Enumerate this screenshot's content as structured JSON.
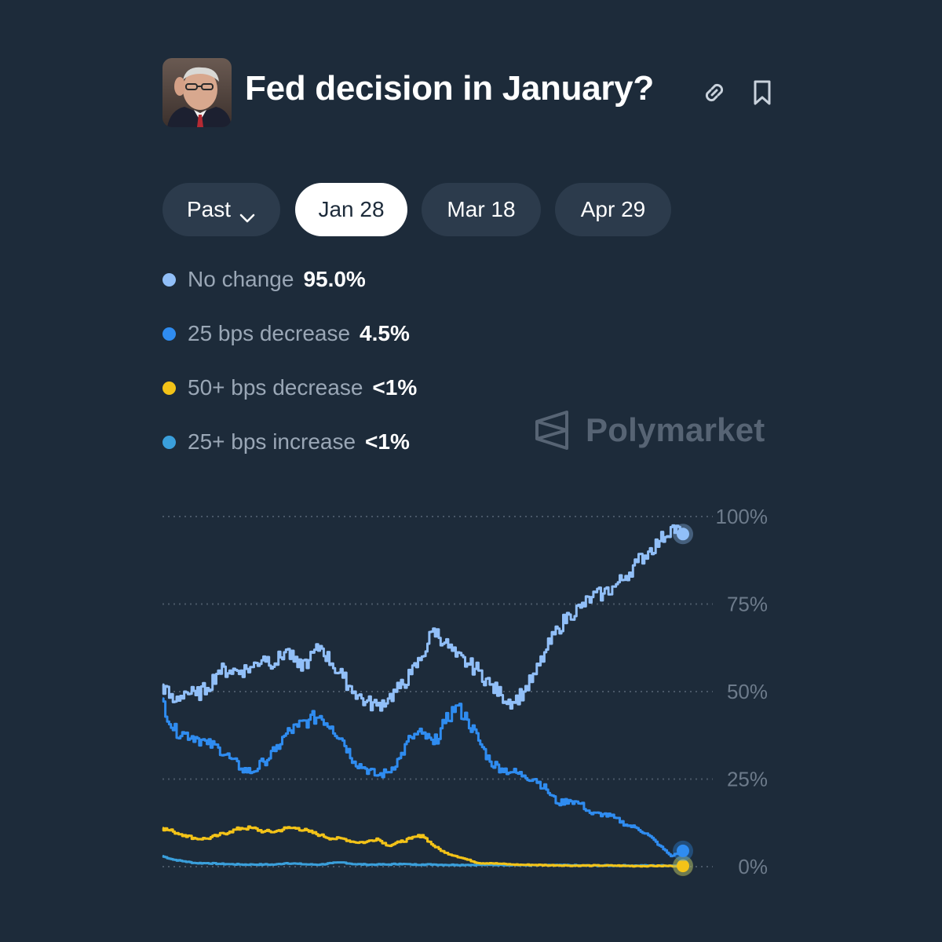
{
  "header": {
    "title": "Fed decision in January?",
    "avatar_icon": "person-portrait",
    "link_icon": "link-icon",
    "bookmark_icon": "bookmark-icon"
  },
  "tabs": [
    {
      "label": "Past",
      "has_dropdown": true,
      "active": false
    },
    {
      "label": "Jan 28",
      "active": true
    },
    {
      "label": "Mar 18",
      "active": false
    },
    {
      "label": "Apr 29",
      "active": false
    }
  ],
  "watermark": {
    "text": "Polymarket"
  },
  "colors": {
    "background": "#1d2b3a",
    "no_change": "#91bff8",
    "decrease_25": "#2f8cf0",
    "decrease_50": "#f3c318",
    "increase_25": "#3a9fdb"
  },
  "chart_data": {
    "type": "line",
    "y_ticks": [
      "100%",
      "75%",
      "50%",
      "25%",
      "0%"
    ],
    "ylim": [
      0,
      100
    ],
    "grid": true,
    "series": [
      {
        "name": "No change",
        "display_value": "95.0%",
        "color": "#91bff8",
        "values": [
          52,
          47,
          50,
          49,
          51,
          56,
          56,
          56,
          57,
          60,
          58,
          62,
          57,
          59,
          63,
          58,
          54,
          50,
          47,
          46,
          48,
          51,
          55,
          60,
          68,
          64,
          60,
          58,
          56,
          52,
          49,
          47,
          50,
          55,
          62,
          68,
          72,
          74,
          77,
          78,
          80,
          83,
          87,
          90,
          93,
          97,
          95
        ]
      },
      {
        "name": "25 bps decrease",
        "display_value": "4.5%",
        "color": "#2f8cf0",
        "values": [
          48,
          39,
          38,
          37,
          35,
          34,
          31,
          28,
          27,
          30,
          33,
          38,
          40,
          42,
          43,
          40,
          36,
          30,
          28,
          26,
          27,
          31,
          37,
          38,
          35,
          41,
          46,
          42,
          36,
          30,
          28,
          27,
          26,
          25,
          22,
          18,
          19,
          18,
          15,
          15,
          14,
          12,
          11,
          9,
          6,
          3,
          4.5
        ]
      },
      {
        "name": "50+ bps decrease",
        "display_value": "<1%",
        "color": "#f3c318",
        "values": [
          11,
          10,
          9,
          8,
          8,
          9,
          10,
          11,
          11,
          10,
          10,
          11,
          11,
          10,
          9,
          8,
          8,
          7,
          7,
          8,
          6,
          7,
          8,
          9,
          6,
          4,
          3,
          2,
          1,
          1,
          0.8,
          0.6,
          0.5,
          0.5,
          0.4,
          0.4,
          0.3,
          0.3,
          0.3,
          0.3,
          0.3,
          0.2,
          0.2,
          0.2,
          0.2,
          0.2,
          0.2
        ]
      },
      {
        "name": "25+ bps increase",
        "display_value": "<1%",
        "color": "#3a9fdb",
        "values": [
          3,
          2,
          1.5,
          1,
          1,
          0.8,
          0.7,
          0.6,
          0.6,
          0.6,
          0.6,
          1,
          0.8,
          0.6,
          0.6,
          1,
          1.2,
          0.7,
          0.6,
          0.6,
          0.6,
          0.8,
          0.6,
          0.6,
          0.6,
          0.5,
          0.5,
          0.5,
          0.5,
          0.5,
          0.5,
          0.5,
          0.4,
          0.4,
          0.4,
          0.4,
          0.4,
          0.3,
          0.3,
          0.3,
          0.3,
          0.3,
          0.3,
          0.3,
          0.3,
          0.3,
          0.3
        ]
      }
    ]
  }
}
